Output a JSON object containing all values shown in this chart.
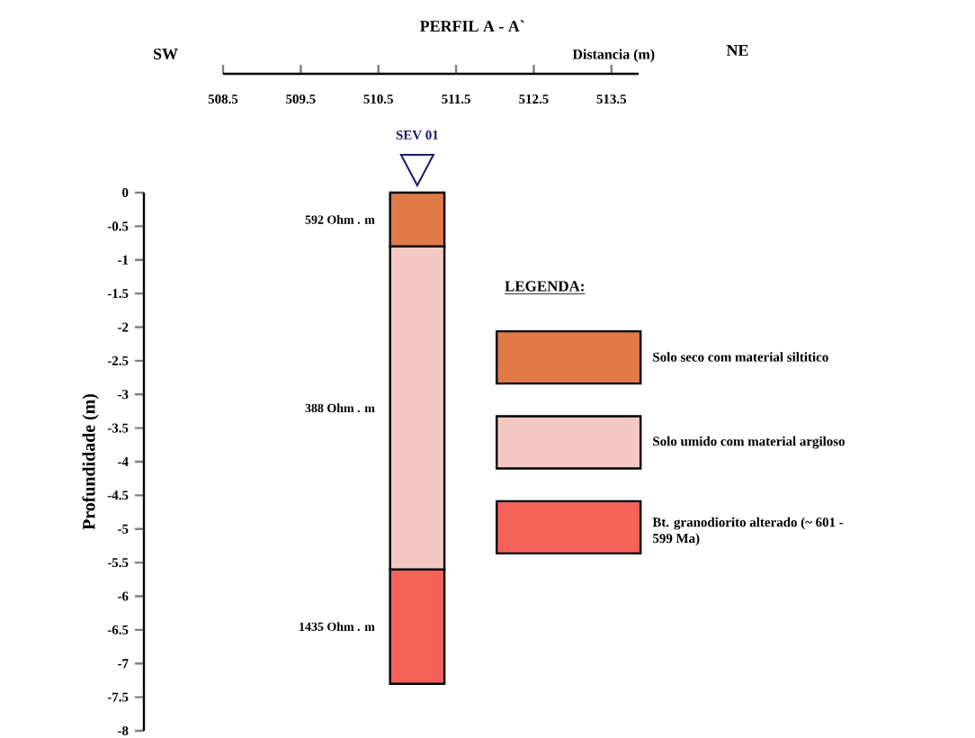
{
  "chart_data": {
    "type": "bar",
    "stacked": true,
    "title": "PERFIL  A - A`",
    "xlabel": "Distancia  (m)",
    "ylabel": "Profundidade  (m)",
    "legend_title": "LEGENDA:",
    "legend": "right",
    "x": [
      511
    ],
    "xlim": [
      508.5,
      513.85
    ],
    "xticks": [
      508.5,
      509.5,
      510.5,
      511.5,
      512.5,
      513.5
    ],
    "ylim": [
      -8,
      0
    ],
    "yticks": [
      0,
      -0.5,
      -1,
      -1.5,
      -2,
      -2.5,
      -3,
      -3.5,
      -4,
      -4.5,
      -5,
      -5.5,
      -6,
      -6.5,
      -7,
      -7.5,
      -8
    ],
    "series": [
      {
        "name": "Solo seco com material siltitico",
        "color": "#e07a48",
        "values": [
          -0.8
        ]
      },
      {
        "name": "Solo umido com material argiloso",
        "color": "#f4c8c2",
        "values": [
          -4.8
        ]
      },
      {
        "name": "Bt. granodiorito alterado (~ 601 - 599 Ma)",
        "color": "#f4625a",
        "values": [
          -1.7
        ]
      }
    ],
    "annotations": [
      "SW",
      "NE",
      "SEV 01",
      "592 Ohm . m",
      "388 Ohm . m",
      "1435 Ohm . m"
    ]
  }
}
